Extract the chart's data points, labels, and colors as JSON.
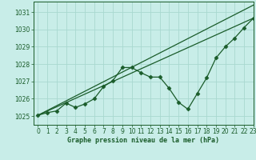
{
  "title": "Graphe pression niveau de la mer (hPa)",
  "bg_color": "#c8ede8",
  "grid_color": "#a8d8d0",
  "line_color": "#1a5c2a",
  "xlim": [
    -0.5,
    23
  ],
  "ylim": [
    1024.5,
    1031.6
  ],
  "yticks": [
    1025,
    1026,
    1027,
    1028,
    1029,
    1030,
    1031
  ],
  "xticks": [
    0,
    1,
    2,
    3,
    4,
    5,
    6,
    7,
    8,
    9,
    10,
    11,
    12,
    13,
    14,
    15,
    16,
    17,
    18,
    19,
    20,
    21,
    22,
    23
  ],
  "series1_x": [
    0,
    1,
    2,
    3,
    4,
    5,
    6,
    7,
    8,
    9,
    10,
    11,
    12,
    13,
    14,
    15,
    16,
    17,
    18,
    19,
    20,
    21,
    22,
    23
  ],
  "series1_y": [
    1025.05,
    1025.2,
    1025.3,
    1025.75,
    1025.5,
    1025.7,
    1026.0,
    1026.7,
    1027.05,
    1027.8,
    1027.8,
    1027.5,
    1027.25,
    1027.25,
    1026.6,
    1025.8,
    1025.4,
    1026.3,
    1027.2,
    1028.35,
    1029.0,
    1029.5,
    1030.1,
    1030.65
  ],
  "series2_x": [
    0,
    23
  ],
  "series2_y": [
    1025.05,
    1030.65
  ],
  "series3_x": [
    0,
    23
  ],
  "series3_y": [
    1025.05,
    1031.4
  ],
  "marker": "D",
  "markersize": 2.5,
  "label_fontsize": 5.5,
  "xlabel_fontsize": 6.0
}
